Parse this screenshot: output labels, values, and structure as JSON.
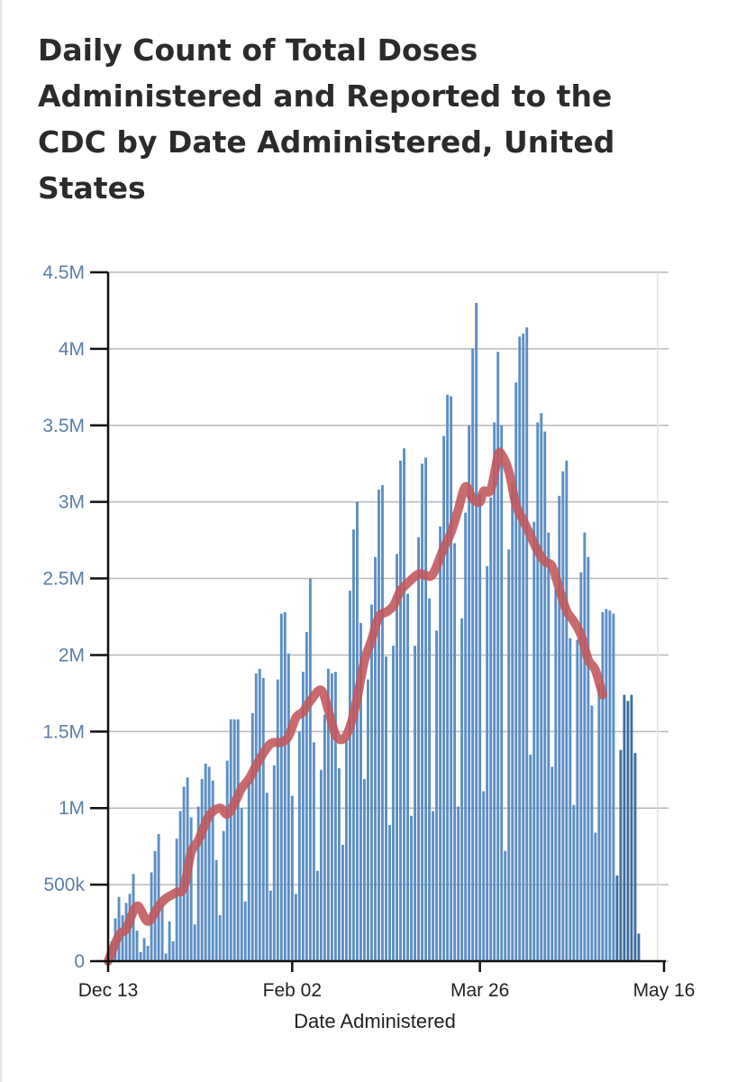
{
  "chart_data": {
    "type": "bar",
    "title": "Daily Count of Total Doses Administered and Reported to the CDC by Date Administered, United States",
    "xlabel": "Date Administered",
    "ylabel": "",
    "ylim": [
      0,
      4500000
    ],
    "xlim": [
      "2020-12-13",
      "2021-05-16"
    ],
    "y_ticks": [
      {
        "value": 0,
        "label": "0"
      },
      {
        "value": 500000,
        "label": "500k"
      },
      {
        "value": 1000000,
        "label": "1M"
      },
      {
        "value": 1500000,
        "label": "1.5M"
      },
      {
        "value": 2000000,
        "label": "2M"
      },
      {
        "value": 2500000,
        "label": "2.5M"
      },
      {
        "value": 3000000,
        "label": "3M"
      },
      {
        "value": 3500000,
        "label": "3.5M"
      },
      {
        "value": 4000000,
        "label": "4M"
      },
      {
        "value": 4500000,
        "label": "4.5M"
      }
    ],
    "x_ticks": [
      {
        "date": "2020-12-13",
        "label": "Dec 13"
      },
      {
        "date": "2021-02-02",
        "label": "Feb 02"
      },
      {
        "date": "2021-03-26",
        "label": "Mar 26"
      },
      {
        "date": "2021-05-16",
        "label": "May 16"
      }
    ],
    "grid": "horizontal",
    "legend": "none",
    "first_date": "2020-12-13",
    "series": [
      {
        "kind": "bar",
        "color": "#5b8ec4",
        "values": [
          10000,
          130000,
          280000,
          420000,
          300000,
          380000,
          440000,
          570000,
          200000,
          60000,
          150000,
          100000,
          580000,
          720000,
          830000,
          370000,
          50000,
          260000,
          130000,
          800000,
          980000,
          1140000,
          1200000,
          940000,
          240000,
          1010000,
          1190000,
          1290000,
          1270000,
          1180000,
          660000,
          300000,
          850000,
          1310000,
          1580000,
          1580000,
          1580000,
          1000000,
          390000,
          1170000,
          1620000,
          1880000,
          1910000,
          1850000,
          1100000,
          460000,
          1280000,
          1840000,
          2270000,
          2280000,
          2010000,
          1080000,
          440000,
          1500000,
          1890000,
          2150000,
          2500000,
          1430000,
          590000,
          1250000,
          1610000,
          1910000,
          1880000,
          1890000,
          1260000,
          760000,
          1450000,
          2420000,
          2820000,
          3000000,
          2210000,
          1190000,
          1840000,
          2330000,
          2640000,
          3080000,
          3110000,
          1990000,
          890000,
          2060000,
          2660000,
          3270000,
          3350000,
          2400000,
          950000,
          2060000,
          2770000,
          3250000,
          3290000,
          2370000,
          980000,
          2160000,
          2840000,
          3430000,
          3700000,
          3690000,
          2730000,
          1010000,
          2240000,
          2930000,
          3500000,
          4000000,
          4300000,
          3050000,
          1110000,
          2580000,
          3030000,
          3520000,
          3980000,
          3500000,
          720000,
          2690000,
          3120000,
          3780000,
          4080000,
          4100000,
          4140000,
          1350000,
          2870000,
          3520000,
          3580000,
          3460000,
          2800000,
          1270000,
          2430000,
          3040000,
          3200000,
          3270000,
          2110000,
          1020000,
          2100000,
          2540000,
          2800000,
          2640000,
          1670000,
          840000,
          1810000,
          2280000,
          2300000,
          2290000,
          2270000,
          560000,
          1380000,
          1740000,
          1700000,
          1740000,
          1360000,
          180000
        ]
      },
      {
        "kind": "line",
        "name": "",
        "color": "#c2565a",
        "points": [
          [
            0,
            0
          ],
          [
            3,
            170000
          ],
          [
            5,
            210000
          ],
          [
            8,
            360000
          ],
          [
            11,
            260000
          ],
          [
            14,
            360000
          ],
          [
            16,
            410000
          ],
          [
            19,
            450000
          ],
          [
            21,
            480000
          ],
          [
            23,
            710000
          ],
          [
            25,
            790000
          ],
          [
            28,
            950000
          ],
          [
            31,
            1000000
          ],
          [
            33,
            960000
          ],
          [
            35,
            1030000
          ],
          [
            37,
            1130000
          ],
          [
            39,
            1190000
          ],
          [
            42,
            1320000
          ],
          [
            45,
            1420000
          ],
          [
            48,
            1430000
          ],
          [
            50,
            1470000
          ],
          [
            52,
            1590000
          ],
          [
            54,
            1630000
          ],
          [
            56,
            1700000
          ],
          [
            59,
            1770000
          ],
          [
            61,
            1640000
          ],
          [
            63,
            1480000
          ],
          [
            65,
            1450000
          ],
          [
            67,
            1530000
          ],
          [
            69,
            1720000
          ],
          [
            71,
            1960000
          ],
          [
            73,
            2100000
          ],
          [
            75,
            2250000
          ],
          [
            77,
            2280000
          ],
          [
            79,
            2320000
          ],
          [
            81,
            2420000
          ],
          [
            83,
            2470000
          ],
          [
            86,
            2530000
          ],
          [
            88,
            2520000
          ],
          [
            90,
            2530000
          ],
          [
            93,
            2700000
          ],
          [
            95,
            2800000
          ],
          [
            97,
            2950000
          ],
          [
            99,
            3100000
          ],
          [
            101,
            3020000
          ],
          [
            103,
            3000000
          ],
          [
            104,
            3070000
          ],
          [
            106,
            3080000
          ],
          [
            108,
            3300000
          ],
          [
            109,
            3310000
          ],
          [
            111,
            3200000
          ],
          [
            113,
            2980000
          ],
          [
            115,
            2880000
          ],
          [
            117,
            2780000
          ],
          [
            119,
            2680000
          ],
          [
            121,
            2610000
          ],
          [
            123,
            2580000
          ],
          [
            125,
            2430000
          ],
          [
            127,
            2290000
          ],
          [
            129,
            2220000
          ],
          [
            131,
            2130000
          ],
          [
            133,
            1970000
          ],
          [
            135,
            1900000
          ],
          [
            137,
            1740000
          ]
        ]
      }
    ]
  }
}
